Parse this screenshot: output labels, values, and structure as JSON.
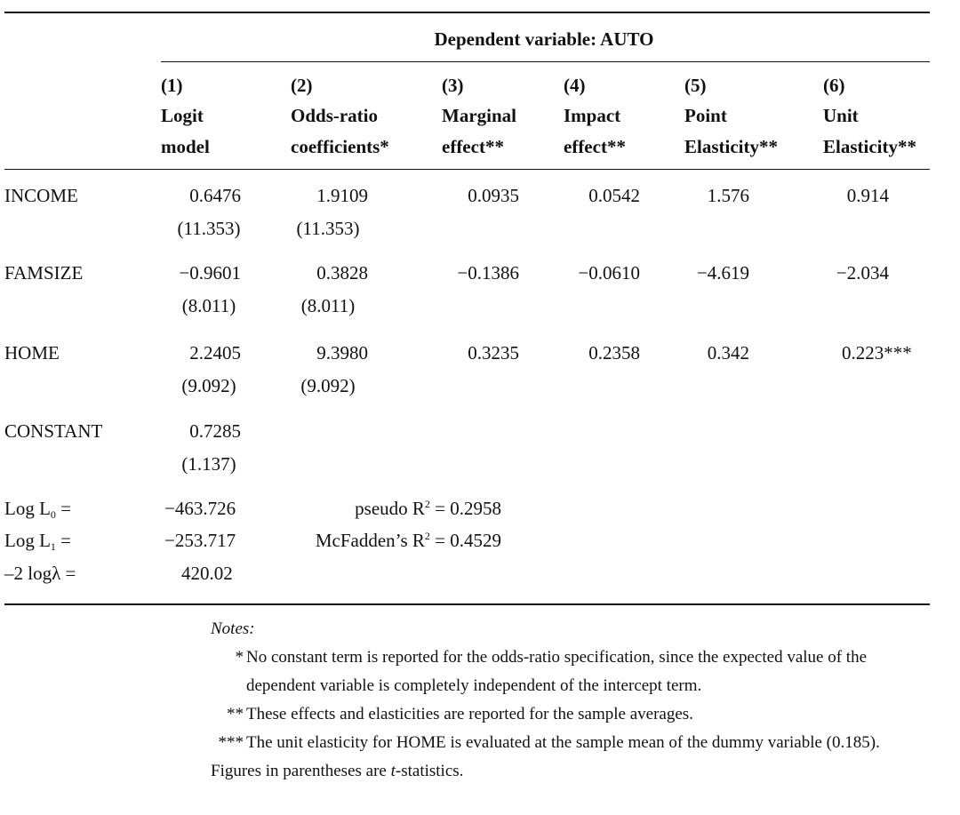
{
  "table": {
    "spanner": "Dependent variable: AUTO",
    "columns": [
      {
        "number": "(1)",
        "lines": [
          "Logit",
          "model"
        ]
      },
      {
        "number": "(2)",
        "lines": [
          "Odds-ratio",
          "coefficients*"
        ]
      },
      {
        "number": "(3)",
        "lines": [
          "Marginal",
          "effect**"
        ]
      },
      {
        "number": "(4)",
        "lines": [
          "Impact",
          "effect**"
        ]
      },
      {
        "number": "(5)",
        "lines": [
          "Point",
          "Elasticity**"
        ]
      },
      {
        "number": "(6)",
        "lines": [
          "Unit",
          "Elasticity**"
        ]
      }
    ],
    "rows": [
      {
        "label": "INCOME",
        "values": [
          "0.6476",
          "1.9109",
          "0.0935",
          "0.0542",
          "1.576",
          "0.914"
        ],
        "tstats": [
          "(11.353)",
          "(11.353)"
        ]
      },
      {
        "label": "FAMSIZE",
        "values": [
          "−0.9601",
          "0.3828",
          "−0.1386",
          "−0.0610",
          "−4.619",
          "−2.034"
        ],
        "tstats": [
          "(8.011)",
          "(8.011)"
        ]
      },
      {
        "label": "HOME",
        "values": [
          "2.2405",
          "9.3980",
          "0.3235",
          "0.2358",
          "0.342",
          "0.223***"
        ],
        "tstats": [
          "(9.092)",
          "(9.092)"
        ]
      },
      {
        "label": "CONSTANT",
        "values": [
          "0.7285"
        ],
        "tstats": [
          "(1.137)"
        ]
      }
    ],
    "stats": [
      {
        "label": {
          "pre": "Log L",
          "sub": "0",
          "post": " ="
        },
        "value": "−463.726",
        "fit": {
          "pre": "pseudo R",
          "sup": "2",
          "post": " = 0.2958"
        }
      },
      {
        "label": {
          "pre": "Log L",
          "sub": "1",
          "post": " ="
        },
        "value": "−253.717",
        "fit": {
          "pre": "McFadden’s R",
          "sup": "2",
          "post": " = 0.4529"
        }
      },
      {
        "label": {
          "pre": "–2 logλ ="
        },
        "value": "420.02"
      }
    ]
  },
  "notes": {
    "heading": "Notes:",
    "items": [
      {
        "marker": "*",
        "text": "No constant term is reported for the odds-ratio specification, since the expected value of the dependent variable is completely independent of the intercept term."
      },
      {
        "marker": "**",
        "text": "These effects and elasticities are reported for the sample averages."
      },
      {
        "marker": "***",
        "text": "The unit elasticity for HOME is evaluated at the sample mean of the dummy variable (0.185)."
      }
    ],
    "footer": {
      "pre": "Figures in parentheses are ",
      "em": "t",
      "post": "-statistics."
    }
  }
}
